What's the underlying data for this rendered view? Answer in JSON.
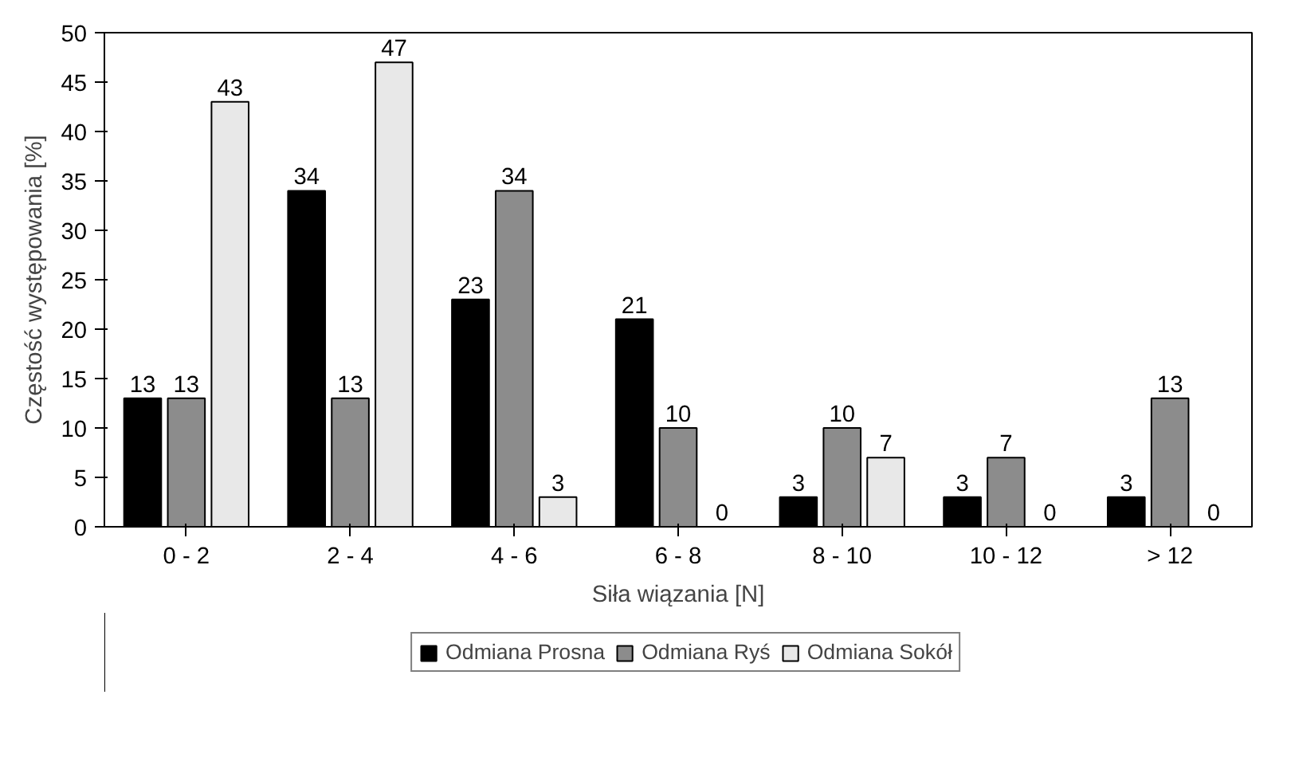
{
  "chart_data": {
    "type": "bar",
    "xlabel": "Siła wiązania [N]",
    "ylabel": "Częstość występowania [%]",
    "categories": [
      "0 - 2",
      "2 - 4",
      "4 - 6",
      "6 - 8",
      "8 - 10",
      "10 - 12",
      "> 12"
    ],
    "series": [
      {
        "name": "Odmiana Prosna",
        "color": "#000000",
        "values": [
          13,
          34,
          23,
          21,
          3,
          3,
          3
        ]
      },
      {
        "name": "Odmiana Ryś",
        "color": "#8c8c8c",
        "values": [
          13,
          13,
          34,
          10,
          10,
          7,
          13
        ]
      },
      {
        "name": "Odmiana Sokół",
        "color": "#e8e8e8",
        "values": [
          43,
          47,
          3,
          0,
          7,
          0,
          0
        ]
      }
    ],
    "ylim": [
      0,
      50
    ],
    "yticks": [
      0,
      5,
      10,
      15,
      20,
      25,
      30,
      35,
      40,
      45,
      50
    ],
    "grid": false,
    "legend": "bottom",
    "data_labels": true
  }
}
